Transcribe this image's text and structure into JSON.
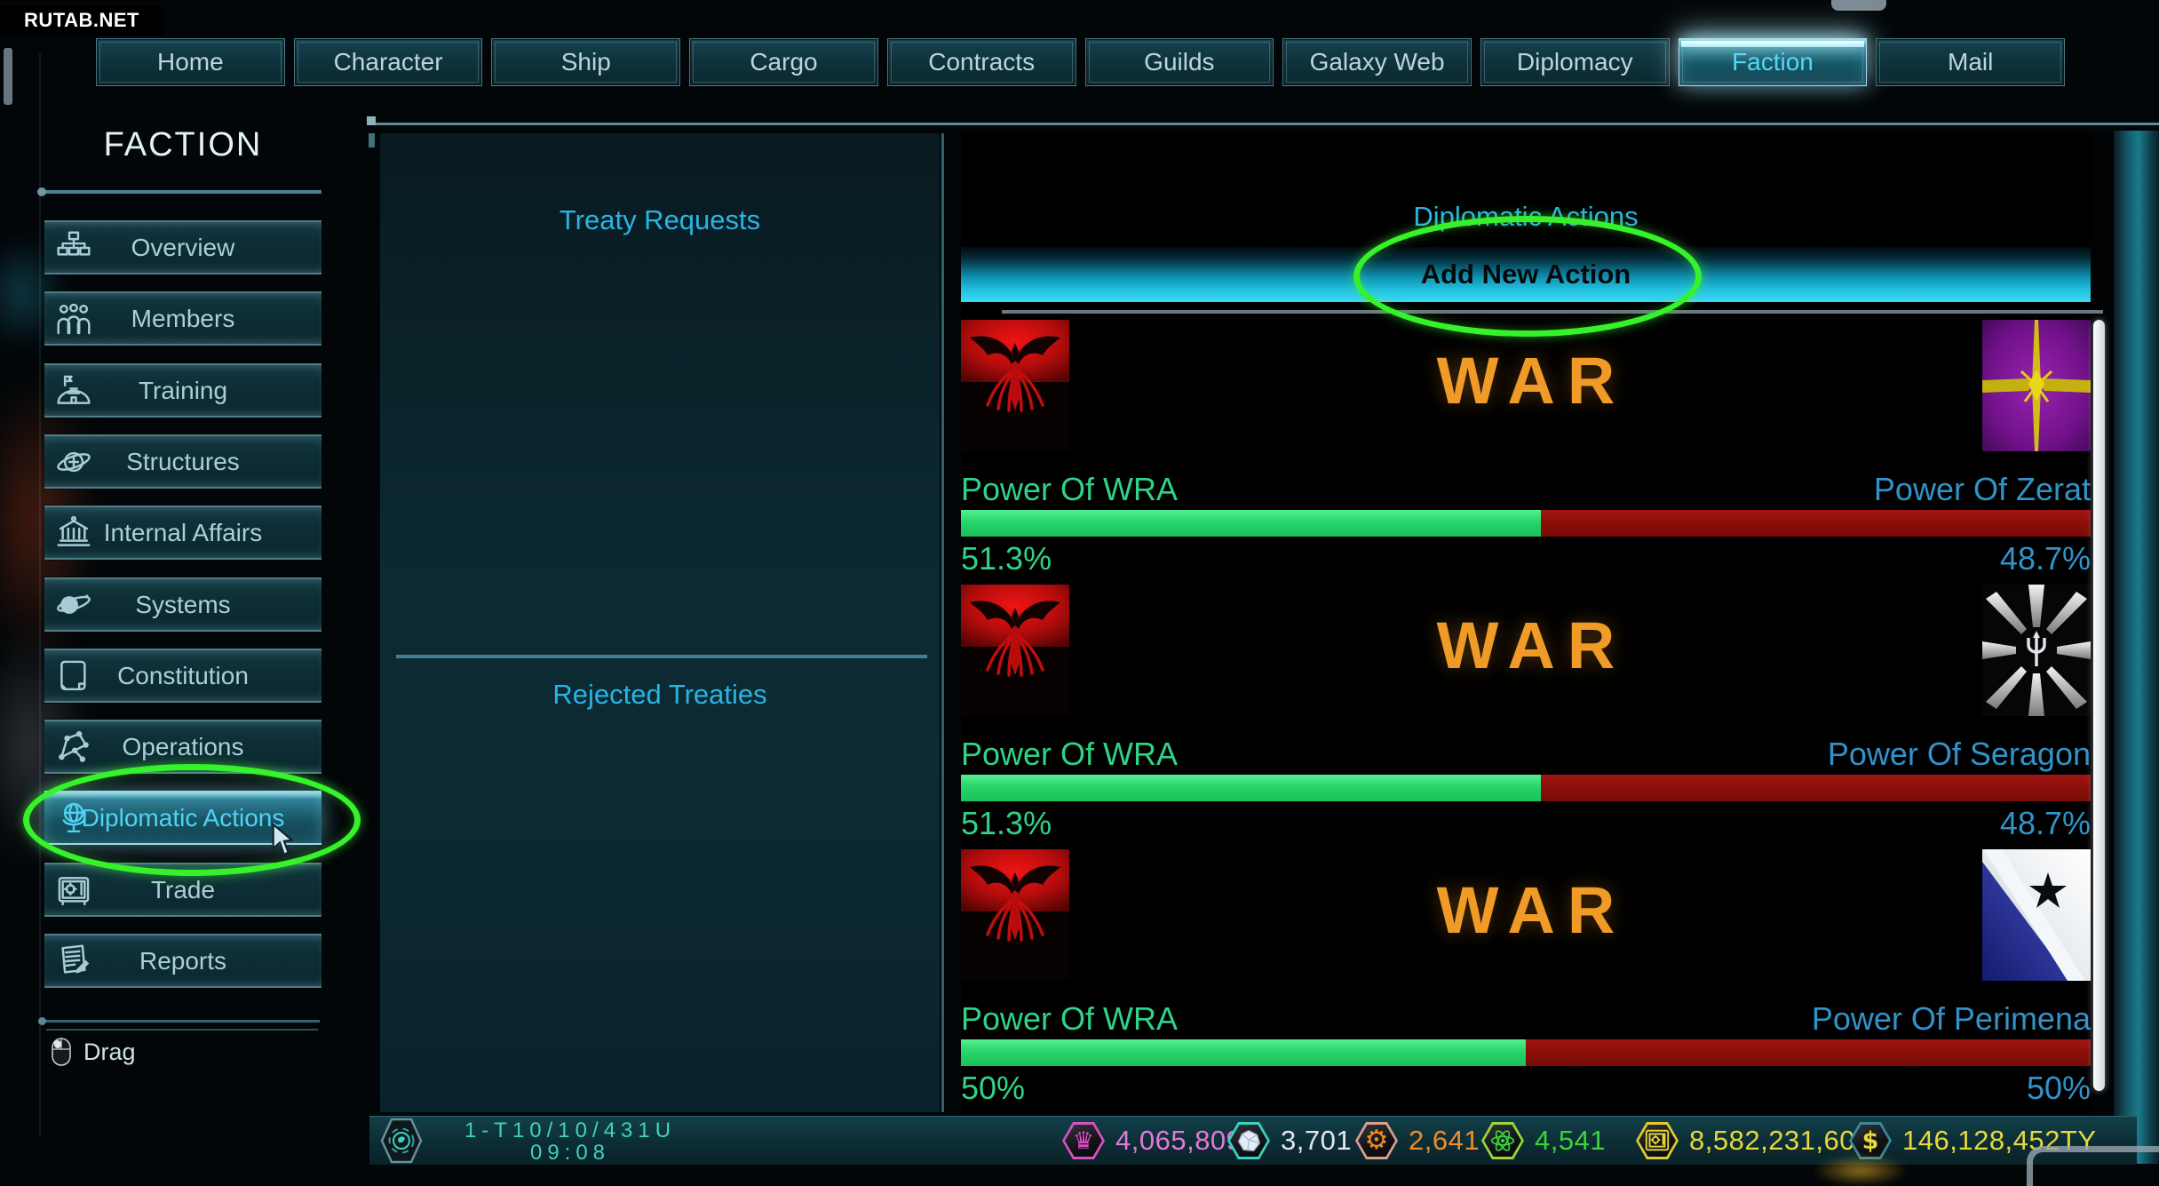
{
  "watermark": "RUTAB.NET",
  "tabs": {
    "items": [
      "Home",
      "Character",
      "Ship",
      "Cargo",
      "Contracts",
      "Guilds",
      "Galaxy Web",
      "Diplomacy",
      "Faction",
      "Mail"
    ],
    "active": "Faction"
  },
  "sidebar": {
    "title": "FACTION",
    "items": [
      {
        "label": "Overview",
        "icon": "org-chart"
      },
      {
        "label": "Members",
        "icon": "people"
      },
      {
        "label": "Training",
        "icon": "camp"
      },
      {
        "label": "Structures",
        "icon": "orbital-station"
      },
      {
        "label": "Internal Affairs",
        "icon": "bank"
      },
      {
        "label": "Systems",
        "icon": "planet"
      },
      {
        "label": "Constitution",
        "icon": "book"
      },
      {
        "label": "Operations",
        "icon": "constellation"
      },
      {
        "label": "Diplomatic Actions",
        "icon": "desk-globe",
        "active": true
      },
      {
        "label": "Trade",
        "icon": "safe"
      },
      {
        "label": "Reports",
        "icon": "report"
      }
    ],
    "drag_label": "Drag"
  },
  "treaties": {
    "requests_title": "Treaty Requests",
    "rejected_title": "Rejected Treaties"
  },
  "diplomacy": {
    "title": "Diplomatic Actions",
    "add_button": "Add New Action",
    "wars": [
      {
        "status": "WAR",
        "left": {
          "name": "Power Of WRA",
          "percent": "51.3%",
          "value": 51.3,
          "flag": "wra"
        },
        "right": {
          "name": "Power Of Zerat",
          "percent": "48.7%",
          "value": 48.7,
          "flag": "zerat"
        }
      },
      {
        "status": "WAR",
        "left": {
          "name": "Power Of WRA",
          "percent": "51.3%",
          "value": 51.3,
          "flag": "wra"
        },
        "right": {
          "name": "Power Of Seragon",
          "percent": "48.7%",
          "value": 48.7,
          "flag": "seragon"
        }
      },
      {
        "status": "WAR",
        "left": {
          "name": "Power Of WRA",
          "percent": "50%",
          "value": 50,
          "flag": "wra"
        },
        "right": {
          "name": "Power Of Perimena",
          "percent": "50%",
          "value": 50,
          "flag": "perimena"
        }
      }
    ]
  },
  "status_bar": {
    "date": "1-T10/10/431U",
    "time": "09:08",
    "currencies": [
      {
        "name": "crown",
        "value": "4,065,809",
        "color": "#e07ad8",
        "accent": "#d94fc4"
      },
      {
        "name": "asteroid",
        "value": "3,701",
        "color": "#e6e4f0",
        "accent": "#35d4c4"
      },
      {
        "name": "gear",
        "value": "2,641",
        "color": "#ef8c2a",
        "accent": "#d9a08c"
      },
      {
        "name": "atom",
        "value": "4,541",
        "color": "#3ad43a",
        "accent": "#9ad838"
      },
      {
        "name": "safe",
        "value": "8,582,231,602",
        "color": "#e8d83a",
        "accent": "#e0cc2e"
      },
      {
        "name": "dollar",
        "value": "146,128,452TY",
        "color": "#e8d83a",
        "accent": "#3a8896"
      }
    ],
    "glyphs": {
      "crown": "♛",
      "gear": "⚙",
      "dollar": "$"
    }
  },
  "colors": {
    "accent_cyan": "#29b4e6",
    "war_orange": "#f09a28",
    "bar_green": "#27d56a",
    "bar_red": "#890e09",
    "left_name_green": "#2fd387",
    "right_name_blue": "#3193c9",
    "annotation_green": "#35f22a"
  }
}
